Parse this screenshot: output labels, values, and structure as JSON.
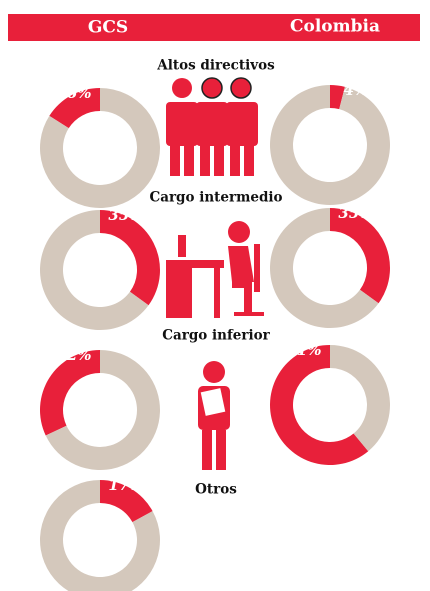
{
  "header": {
    "left": "GCS",
    "right": "Colombia"
  },
  "sections": [
    "Altos directivos",
    "Cargo intermedio",
    "Cargo inferior",
    "Otros"
  ],
  "chart_data": [
    {
      "type": "pie",
      "values": [
        16,
        84
      ],
      "value_labels": [
        "16%",
        null
      ],
      "colors": [
        "#e8203a",
        "#d4c8bc"
      ],
      "direction": "counterclockwise"
    },
    {
      "type": "pie",
      "values": [
        4,
        96
      ],
      "value_labels": [
        "4%",
        null
      ],
      "colors": [
        "#e8203a",
        "#d4c8bc"
      ],
      "direction": "clockwise"
    },
    {
      "type": "pie",
      "values": [
        35,
        65
      ],
      "value_labels": [
        "35%",
        null
      ],
      "colors": [
        "#e8203a",
        "#d4c8bc"
      ],
      "direction": "clockwise"
    },
    {
      "type": "pie",
      "values": [
        35,
        65
      ],
      "value_labels": [
        "35%",
        null
      ],
      "colors": [
        "#e8203a",
        "#d4c8bc"
      ],
      "direction": "clockwise"
    },
    {
      "type": "pie",
      "values": [
        32,
        68
      ],
      "value_labels": [
        "32%",
        null
      ],
      "colors": [
        "#e8203a",
        "#d4c8bc"
      ],
      "direction": "counterclockwise"
    },
    {
      "type": "pie",
      "values": [
        61,
        39
      ],
      "value_labels": [
        "61%",
        null
      ],
      "colors": [
        "#e8203a",
        "#d4c8bc"
      ],
      "direction": "counterclockwise"
    },
    {
      "type": "pie",
      "values": [
        17,
        83
      ],
      "value_labels": [
        "17%",
        null
      ],
      "colors": [
        "#e8203a",
        "#d4c8bc"
      ],
      "direction": "clockwise"
    }
  ]
}
